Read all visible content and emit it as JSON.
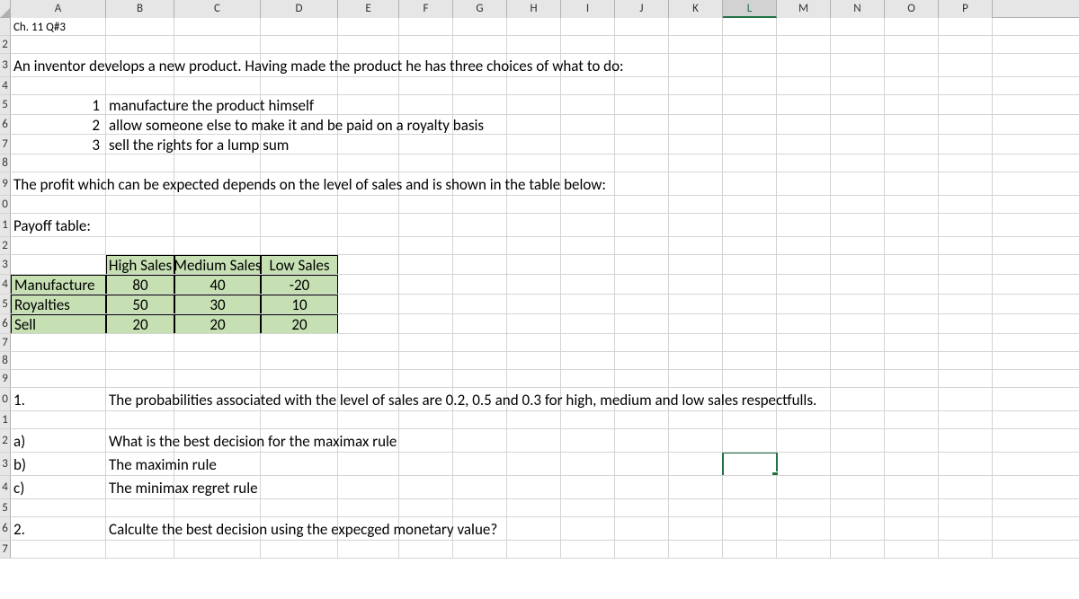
{
  "columns": [
    {
      "label": "A",
      "w": 106
    },
    {
      "label": "B",
      "w": 76
    },
    {
      "label": "C",
      "w": 96
    },
    {
      "label": "D",
      "w": 86
    },
    {
      "label": "E",
      "w": 68
    },
    {
      "label": "F",
      "w": 60
    },
    {
      "label": "G",
      "w": 60
    },
    {
      "label": "H",
      "w": 60
    },
    {
      "label": "I",
      "w": 60
    },
    {
      "label": "J",
      "w": 60
    },
    {
      "label": "K",
      "w": 60
    },
    {
      "label": "L",
      "w": 60
    },
    {
      "label": "M",
      "w": 60
    },
    {
      "label": "N",
      "w": 60
    },
    {
      "label": "O",
      "w": 60
    },
    {
      "label": "P",
      "w": 60
    }
  ],
  "active_column_index": 11,
  "rows": [
    {
      "label": "",
      "h": 20
    },
    {
      "label": "2",
      "h": 20
    },
    {
      "label": "3",
      "h": 26
    },
    {
      "label": "4",
      "h": 20
    },
    {
      "label": "5",
      "h": 22
    },
    {
      "label": "6",
      "h": 22
    },
    {
      "label": "7",
      "h": 22
    },
    {
      "label": "8",
      "h": 20
    },
    {
      "label": "9",
      "h": 26
    },
    {
      "label": "0",
      "h": 20
    },
    {
      "label": "1",
      "h": 26
    },
    {
      "label": "2",
      "h": 20
    },
    {
      "label": "3",
      "h": 22
    },
    {
      "label": "4",
      "h": 22
    },
    {
      "label": "5",
      "h": 22
    },
    {
      "label": "6",
      "h": 22
    },
    {
      "label": "7",
      "h": 20
    },
    {
      "label": "8",
      "h": 20
    },
    {
      "label": "9",
      "h": 20
    },
    {
      "label": "0",
      "h": 26
    },
    {
      "label": "1",
      "h": 20
    },
    {
      "label": "2",
      "h": 26
    },
    {
      "label": "3",
      "h": 26
    },
    {
      "label": "4",
      "h": 26
    },
    {
      "label": "5",
      "h": 20
    },
    {
      "label": "6",
      "h": 26
    },
    {
      "label": "7",
      "h": 20
    }
  ],
  "content": {
    "r0": {
      "A": "Ch. 11 Q#3"
    },
    "r2": {
      "A": "An inventor develops a new product.  Having made the product he has three choices of what to do:"
    },
    "r4": {
      "A": "1",
      "B": "manufacture the product himself"
    },
    "r5": {
      "A": "2",
      "B": "allow someone else to make it and be paid on a royalty basis"
    },
    "r6": {
      "A": "3",
      "B": "sell the rights for a lump sum"
    },
    "r8": {
      "A": "The profit which can be expected depends on the level of sales and is shown in the table below:"
    },
    "r10": {
      "A": "Payoff table:"
    },
    "r12": {
      "B": "High Sales",
      "C": "Medium Sales",
      "D": "Low Sales"
    },
    "r13": {
      "A": "Manufacture",
      "B": "80",
      "C": "40",
      "D": "-20"
    },
    "r14": {
      "A": "Royalties",
      "B": "50",
      "C": "30",
      "D": "10"
    },
    "r15": {
      "A": "Sell",
      "B": "20",
      "C": "20",
      "D": "20"
    },
    "r19": {
      "A": "1.",
      "B": "The probabilities associated with the level of sales are 0.2, 0.5 and 0.3 for high, medium and low sales respectfulls."
    },
    "r21": {
      "A": "a)",
      "B": "What is the best decision for the maximax rule"
    },
    "r22": {
      "A": "b)",
      "B": "The maximin rule"
    },
    "r23": {
      "A": "c)",
      "B": "The minimax regret rule"
    },
    "r25": {
      "A": "2.",
      "B": "Calculte the best decision using the expecged monetary value?"
    }
  },
  "small_font_rows": [
    0
  ],
  "large_font_rows": [
    2,
    4,
    5,
    6,
    8,
    10,
    12,
    13,
    14,
    15,
    19,
    21,
    22,
    23,
    25
  ],
  "payoff_header_row": 12,
  "payoff_body_rows": [
    13,
    14,
    15
  ],
  "active_cell": {
    "row": 22,
    "col": 11
  },
  "colors": {
    "grid_line": "#d4d4d4",
    "header_bg": "#e6e6e6",
    "header_border": "#b0b0b0",
    "payoff_fill": "#c6e0b4",
    "payoff_border": "#000000",
    "selection": "#217346"
  }
}
